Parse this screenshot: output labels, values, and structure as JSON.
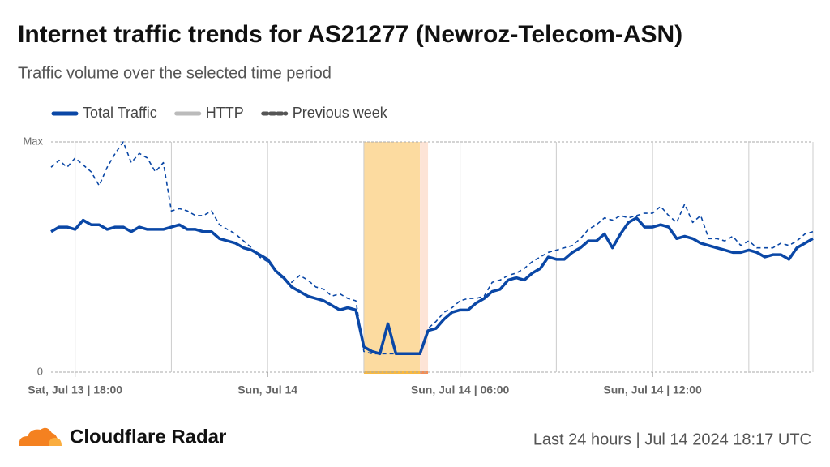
{
  "chart_data": {
    "type": "line",
    "title": "Internet traffic trends for AS21277 (Newroz-Telecom-ASN)",
    "subtitle": "Traffic volume over the selected time period",
    "brand": "Cloudflare Radar",
    "footer": "Last 24 hours | Jul 14 2024 18:17 UTC",
    "x": [
      17.25,
      17.5,
      17.75,
      18,
      18.25,
      18.5,
      18.75,
      19,
      19.25,
      19.5,
      19.75,
      20,
      20.25,
      20.5,
      20.75,
      21,
      21.25,
      21.5,
      21.75,
      22,
      22.25,
      22.5,
      22.75,
      23,
      23.25,
      23.5,
      23.75,
      24,
      24.25,
      24.5,
      24.75,
      25,
      25.25,
      25.5,
      25.75,
      26,
      26.25,
      26.5,
      26.75,
      27,
      27.25,
      27.5,
      27.75,
      28,
      28.25,
      28.5,
      28.75,
      29,
      29.25,
      29.5,
      29.75,
      30,
      30.25,
      30.5,
      30.75,
      31,
      31.25,
      31.5,
      31.75,
      32,
      32.25,
      32.5,
      32.75,
      33,
      33.25,
      33.5,
      33.75,
      34,
      34.25,
      34.5,
      34.75,
      35,
      35.25,
      35.5,
      35.75,
      36,
      36.25,
      36.5,
      36.75,
      37,
      37.25,
      37.5,
      37.75,
      38,
      38.25,
      38.5,
      38.75,
      39,
      39.25,
      39.5,
      39.75,
      40,
      40.25,
      40.5,
      40.75,
      41
    ],
    "series": [
      {
        "name": "Total Traffic",
        "color": "#0a47a6",
        "width": 3.5,
        "values": [
          61,
          63,
          63,
          62,
          66,
          64,
          64,
          62,
          63,
          63,
          61,
          63,
          62,
          62,
          62,
          63,
          64,
          62,
          62,
          61,
          61,
          58,
          57,
          56,
          54,
          53,
          51,
          49,
          44,
          41,
          37,
          35,
          33,
          32,
          31,
          29,
          27,
          28,
          27,
          11,
          9,
          8,
          21,
          8,
          8,
          8,
          8,
          18,
          19,
          23,
          26,
          27,
          27,
          30,
          32,
          35,
          36,
          40,
          41,
          40,
          43,
          45,
          50,
          49,
          49,
          52,
          54,
          57,
          57,
          60,
          54,
          60,
          65,
          67,
          63,
          63,
          64,
          63,
          58,
          59,
          58,
          56,
          55,
          54,
          53,
          52,
          52,
          53,
          52,
          50,
          51,
          51,
          49,
          54,
          56,
          58
        ]
      },
      {
        "name": "HTTP",
        "color": "#bbbbbb"
      },
      {
        "name": "Previous week",
        "color": "#0a47a6",
        "legend_color": "#555555",
        "dash": true,
        "width": 1.6,
        "values": [
          89,
          92,
          89,
          93,
          90,
          87,
          81,
          89,
          95,
          100,
          91,
          95,
          93,
          87,
          91,
          70,
          71,
          70,
          68,
          68,
          70,
          64,
          62,
          60,
          57,
          54,
          50,
          48,
          44,
          40,
          39,
          42,
          40,
          37,
          36,
          33,
          34,
          32,
          31,
          9,
          8,
          8,
          8,
          8,
          8,
          8,
          8,
          19,
          22,
          26,
          28,
          31,
          32,
          32,
          33,
          39,
          40,
          42,
          43,
          45,
          48,
          50,
          52,
          53,
          54,
          55,
          58,
          62,
          64,
          67,
          66,
          68,
          67,
          68,
          69,
          69,
          72,
          68,
          65,
          73,
          65,
          68,
          58,
          58,
          57,
          59,
          55,
          57,
          54,
          54,
          54,
          56,
          55,
          57,
          60,
          61
        ]
      }
    ],
    "xlim": [
      17.25,
      41
    ],
    "xticks": [
      {
        "value": 18,
        "label": "Sat, Jul 13 | 18:00"
      },
      {
        "value": 24,
        "label": "Sun, Jul 14"
      },
      {
        "value": 30,
        "label": "Sun, Jul 14 | 06:00"
      },
      {
        "value": 36,
        "label": "Sun, Jul 14 | 12:00"
      }
    ],
    "xgrid": [
      21,
      27,
      33,
      39
    ],
    "ylim": [
      0,
      100
    ],
    "yticks": [
      0,
      {
        "value": 100,
        "label": "Max"
      }
    ],
    "highlights": [
      {
        "x": [
          27.0,
          28.75
        ],
        "color": "#fcdba0",
        "edge_color": "#f9b93f"
      },
      {
        "x": [
          28.75,
          29.0
        ],
        "color": "#fde4d6",
        "edge_color": "#f28d55"
      }
    ]
  }
}
